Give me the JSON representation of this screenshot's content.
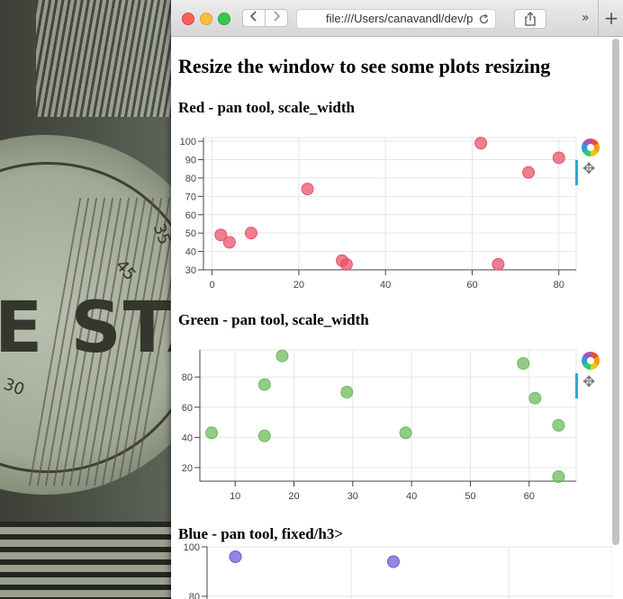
{
  "browser": {
    "url": "file:///Users/canavandl/dev/p",
    "back_icon": "chevron-left-icon",
    "forward_icon": "chevron-right-icon",
    "reload_icon": "reload-icon",
    "share_icon": "share-icon",
    "overflow_icon": "double-chevron-icon",
    "new_tab_icon": "plus-icon",
    "more_label": "»",
    "new_tab_label": "+"
  },
  "desktop": {
    "wallpaper_text": "E STAN",
    "dial_numbers": [
      "35",
      "45",
      "30"
    ]
  },
  "page": {
    "heading": "Resize the window to see some plots resizing",
    "sections": [
      {
        "title": "Red - pan tool, scale_width"
      },
      {
        "title": "Green - pan tool, scale_width"
      },
      {
        "title": "Blue - pan tool, fixed/h3>"
      }
    ]
  },
  "colors": {
    "red": "#e8536b",
    "green": "#6dbb5c",
    "blue": "#6a5fd6",
    "grid": "#e6e6e6"
  },
  "chart_data": [
    {
      "type": "scatter",
      "title": "Red - pan tool, scale_width",
      "series": [
        {
          "name": "red",
          "color": "#e8536b",
          "x": [
            2,
            4,
            9,
            22,
            30,
            31,
            62,
            66,
            73,
            80
          ],
          "y": [
            49,
            45,
            50,
            74,
            35,
            33,
            99,
            33,
            83,
            91
          ]
        }
      ],
      "xlim": [
        -2,
        84
      ],
      "ylim": [
        30,
        102
      ],
      "xticks": [
        0,
        20,
        40,
        60,
        80
      ],
      "yticks": [
        30,
        40,
        50,
        60,
        70,
        80,
        90,
        100
      ],
      "grid": true
    },
    {
      "type": "scatter",
      "title": "Green - pan tool, scale_width",
      "series": [
        {
          "name": "green",
          "color": "#6dbb5c",
          "x": [
            6,
            15,
            15,
            18,
            29,
            39,
            59,
            61,
            65,
            65
          ],
          "y": [
            43,
            41,
            75,
            94,
            70,
            43,
            89,
            66,
            48,
            14
          ]
        }
      ],
      "xlim": [
        4,
        68
      ],
      "ylim": [
        11,
        98
      ],
      "xticks": [
        10,
        20,
        30,
        40,
        50,
        60
      ],
      "yticks": [
        20,
        40,
        60,
        80
      ],
      "grid": true
    },
    {
      "type": "scatter",
      "title": "Blue - pan tool, fixed/h3>",
      "series": [
        {
          "name": "blue",
          "color": "#6a5fd6",
          "x": [
            7,
            46
          ],
          "y": [
            96,
            94
          ]
        }
      ],
      "xlim": [
        0,
        100
      ],
      "ylim": [
        80,
        100
      ],
      "yticks": [
        80,
        100
      ],
      "grid": true
    }
  ]
}
